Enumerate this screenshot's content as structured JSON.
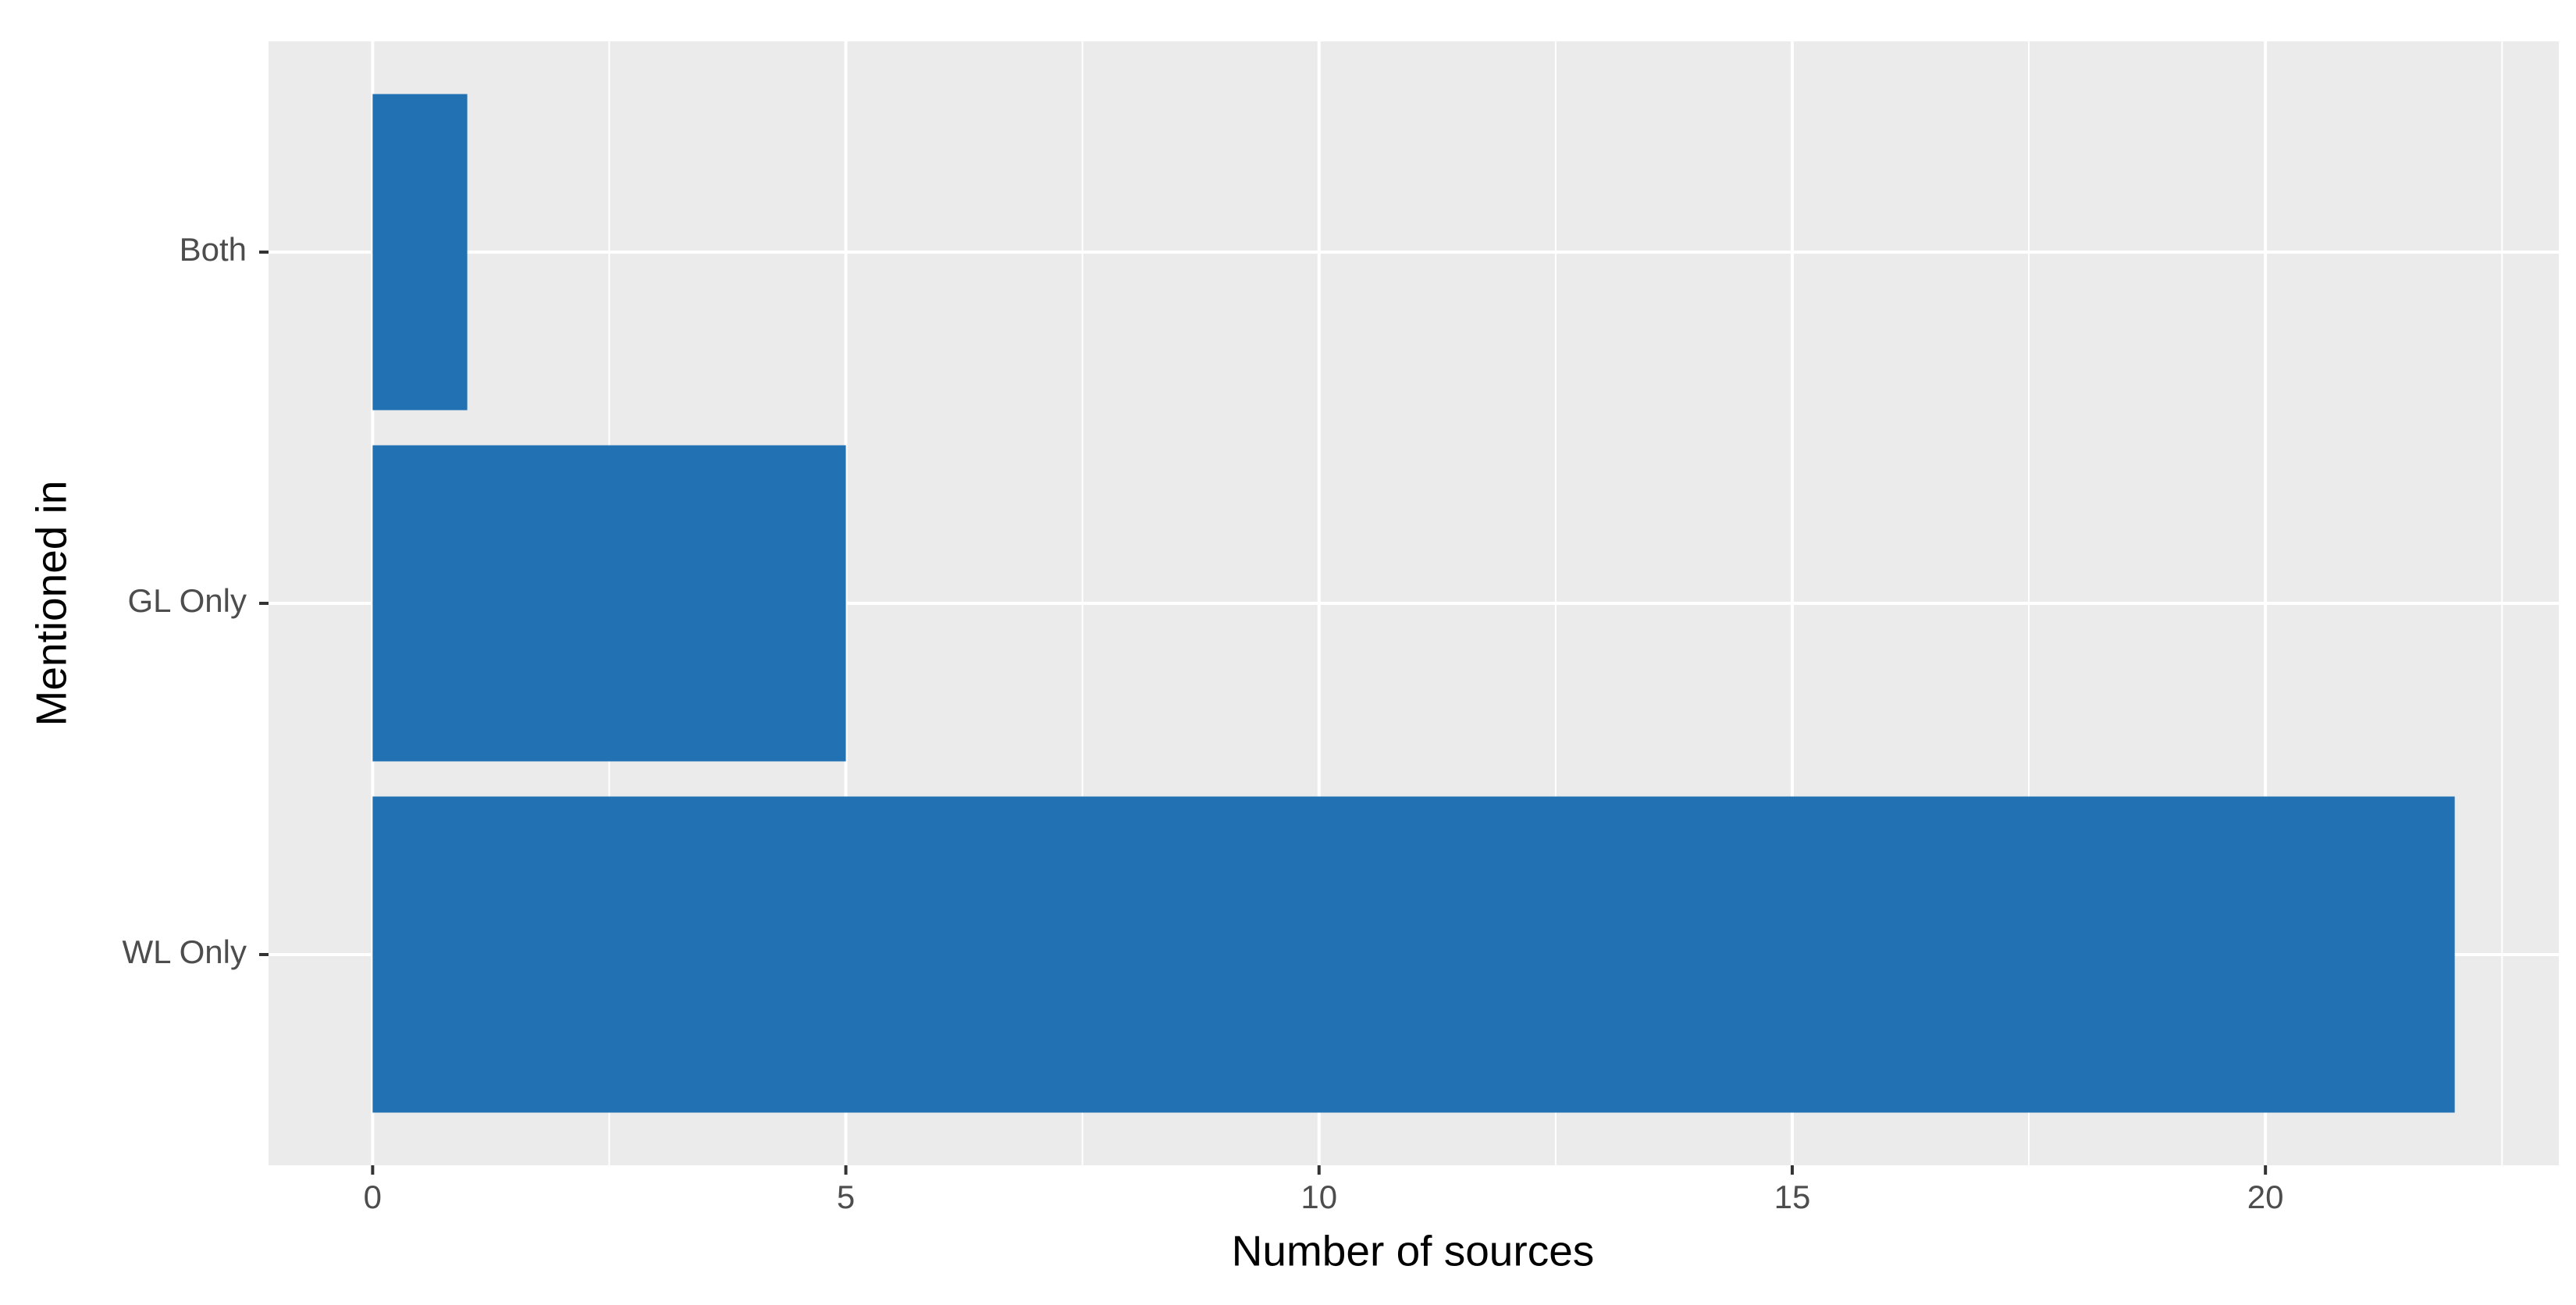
{
  "chart_data": {
    "type": "bar",
    "orientation": "horizontal",
    "x_label": "Number of sources",
    "y_label": "Mentioned in",
    "categories": [
      "WL Only",
      "GL Only",
      "Both"
    ],
    "values": [
      22,
      5,
      1
    ],
    "color": "#2271b3",
    "xlim": [
      -1.1,
      23.1
    ],
    "xticks": [
      0,
      5,
      10,
      15,
      20
    ],
    "grid": true
  }
}
